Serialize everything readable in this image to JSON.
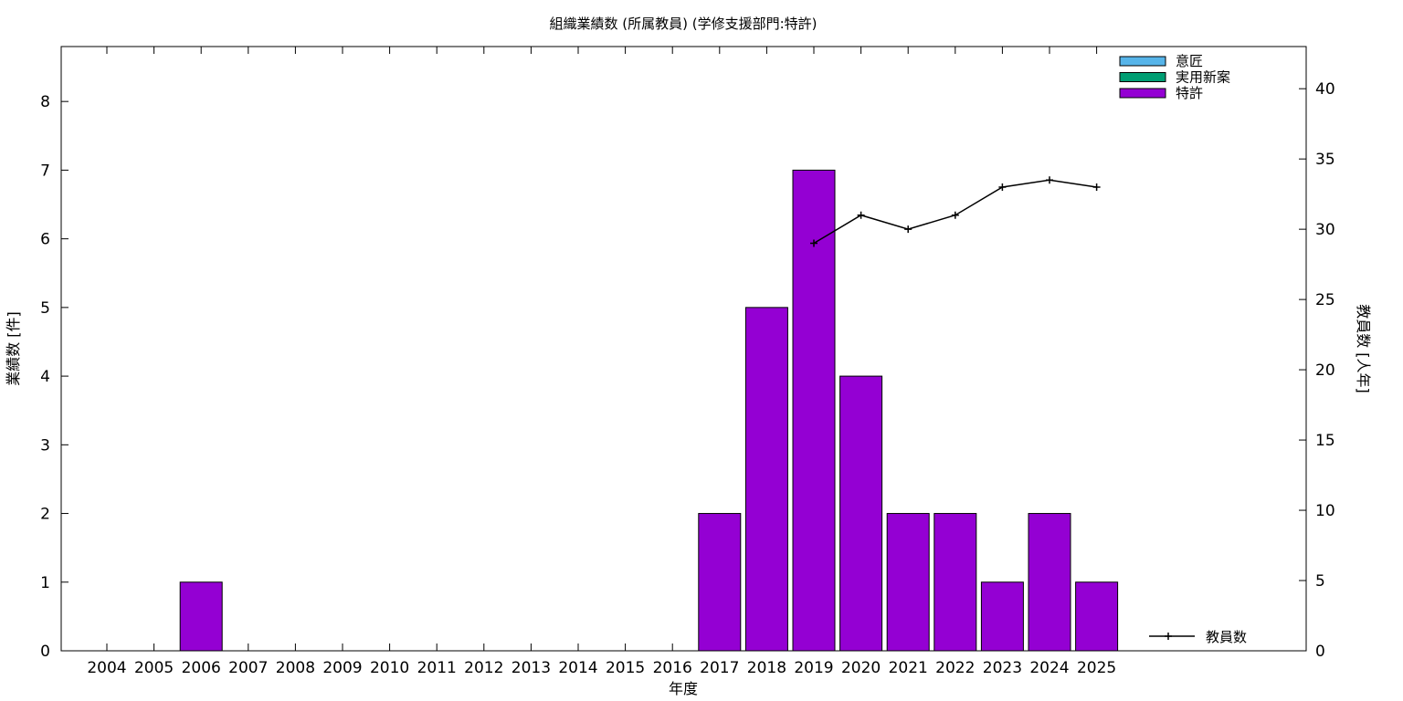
{
  "chart_data": {
    "type": "bar",
    "title": "組織業績数 (所属教員) (学修支援部門:特許)",
    "xlabel": "年度",
    "ylabel": "業績数 [件]",
    "y2label": "教員数 [人年]",
    "categories": [
      "2004",
      "2005",
      "2006",
      "2007",
      "2008",
      "2009",
      "2010",
      "2011",
      "2012",
      "2013",
      "2014",
      "2015",
      "2016",
      "2017",
      "2018",
      "2019",
      "2020",
      "2021",
      "2022",
      "2023",
      "2024",
      "2025"
    ],
    "ylim": [
      0,
      8.8
    ],
    "yticks": [
      0,
      1,
      2,
      3,
      4,
      5,
      6,
      7,
      8
    ],
    "y2lim": [
      0,
      43
    ],
    "y2ticks": [
      0,
      5,
      10,
      15,
      20,
      25,
      30,
      35,
      40
    ],
    "grid": false,
    "legend_position": "top-right",
    "series": [
      {
        "name": "意匠",
        "type": "bar",
        "color": "#56b4e9",
        "values": [
          0,
          0,
          0,
          0,
          0,
          0,
          0,
          0,
          0,
          0,
          0,
          0,
          0,
          0,
          0,
          0,
          0,
          0,
          0,
          0,
          0,
          0
        ]
      },
      {
        "name": "実用新案",
        "type": "bar",
        "color": "#009e73",
        "values": [
          0,
          0,
          0,
          0,
          0,
          0,
          0,
          0,
          0,
          0,
          0,
          0,
          0,
          0,
          0,
          0,
          0,
          0,
          0,
          0,
          0,
          0
        ]
      },
      {
        "name": "特許",
        "type": "bar",
        "color": "#9400d3",
        "values": [
          0,
          0,
          1,
          0,
          0,
          0,
          0,
          0,
          0,
          0,
          0,
          0,
          0,
          2,
          5,
          7,
          4,
          2,
          2,
          1,
          2,
          1
        ]
      },
      {
        "name": "教員数",
        "type": "line",
        "axis": "y2",
        "color": "#000000",
        "x": [
          "2019",
          "2020",
          "2021",
          "2022",
          "2023",
          "2024",
          "2025"
        ],
        "values": [
          29,
          31,
          30,
          31,
          33,
          33.5,
          33
        ]
      }
    ]
  }
}
